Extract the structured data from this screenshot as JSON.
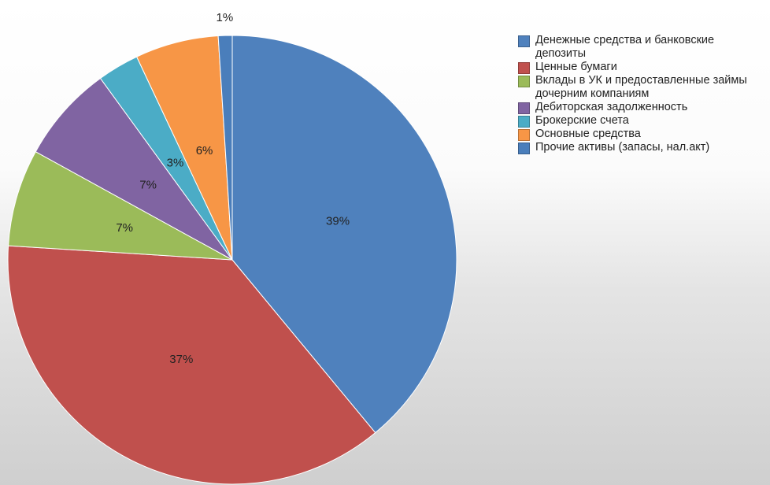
{
  "chart_data": {
    "type": "pie",
    "categories": [
      "Денежные средства и банковские депозиты",
      "Ценные бумаги",
      "Вклады в УК и предоставленные займы дочерним компаниям",
      "Дебиторская задолженность",
      "Брокерские счета",
      "Основные средства",
      "Прочие активы (запасы, нал.акт)"
    ],
    "values": [
      39,
      37,
      7,
      7,
      3,
      6,
      1
    ],
    "value_labels": [
      "39%",
      "37%",
      "7%",
      "7%",
      "3%",
      "6%",
      "1%"
    ],
    "colors": [
      "#4f81bd",
      "#c0504d",
      "#9bbb59",
      "#8064a2",
      "#4bacc6",
      "#f79646",
      "#4a7ebb"
    ],
    "legend": "right"
  }
}
